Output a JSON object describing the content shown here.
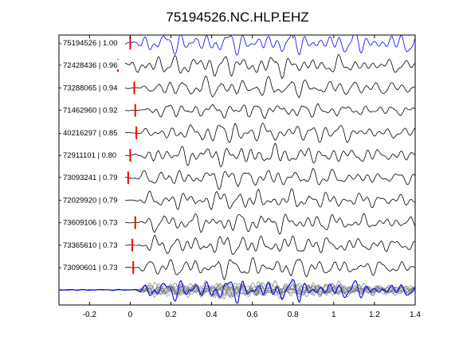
{
  "chart_data": {
    "type": "line",
    "title": "75194526.NC.HLP.EHZ",
    "xlim": [
      -0.35,
      1.4
    ],
    "x_ticks": [
      "-0.2",
      "0",
      "0.2",
      "0.4",
      "0.6",
      "0.8",
      "1",
      "1.2",
      "1.4"
    ],
    "x_tick_values": [
      -0.2,
      0,
      0.2,
      0.4,
      0.6,
      0.8,
      1.0,
      1.2,
      1.4
    ],
    "grid": false,
    "colors": {
      "reference_trace": "#0000ff",
      "trace": "#000000",
      "pick_marker": "#ff0000",
      "stack_trace": "#808080"
    },
    "traces": [
      {
        "label": "75194526 | 1.00",
        "event_id": "75194526",
        "correlation": 1.0,
        "pick_time": 0.0,
        "reference": true
      },
      {
        "label": "72428436 | 0.96",
        "event_id": "72428436",
        "correlation": 0.96,
        "pick_time": -0.06
      },
      {
        "label": "73288065 | 0.94",
        "event_id": "73288065",
        "correlation": 0.94,
        "pick_time": 0.02
      },
      {
        "label": "71462960 | 0.92",
        "event_id": "71462960",
        "correlation": 0.92,
        "pick_time": 0.025
      },
      {
        "label": "40216297 | 0.85",
        "event_id": "40216297",
        "correlation": 0.85,
        "pick_time": 0.03
      },
      {
        "label": "72911101 | 0.80",
        "event_id": "72911101",
        "correlation": 0.8,
        "pick_time": 0.0
      },
      {
        "label": "73093241 | 0.79",
        "event_id": "73093241",
        "correlation": 0.79,
        "pick_time": -0.01
      },
      {
        "label": "72029920 | 0.79",
        "event_id": "72029920",
        "correlation": 0.79,
        "pick_time": null
      },
      {
        "label": "73609106 | 0.73",
        "event_id": "73609106",
        "correlation": 0.73,
        "pick_time": 0.025
      },
      {
        "label": "73365610 | 0.73",
        "event_id": "73365610",
        "correlation": 0.73,
        "pick_time": 0.01
      },
      {
        "label": "73090601 | 0.73",
        "event_id": "73090601",
        "correlation": 0.73,
        "pick_time": 0.015
      }
    ],
    "stack": {
      "reference_color": "#0000ff",
      "overlay_color": "#808080"
    }
  }
}
